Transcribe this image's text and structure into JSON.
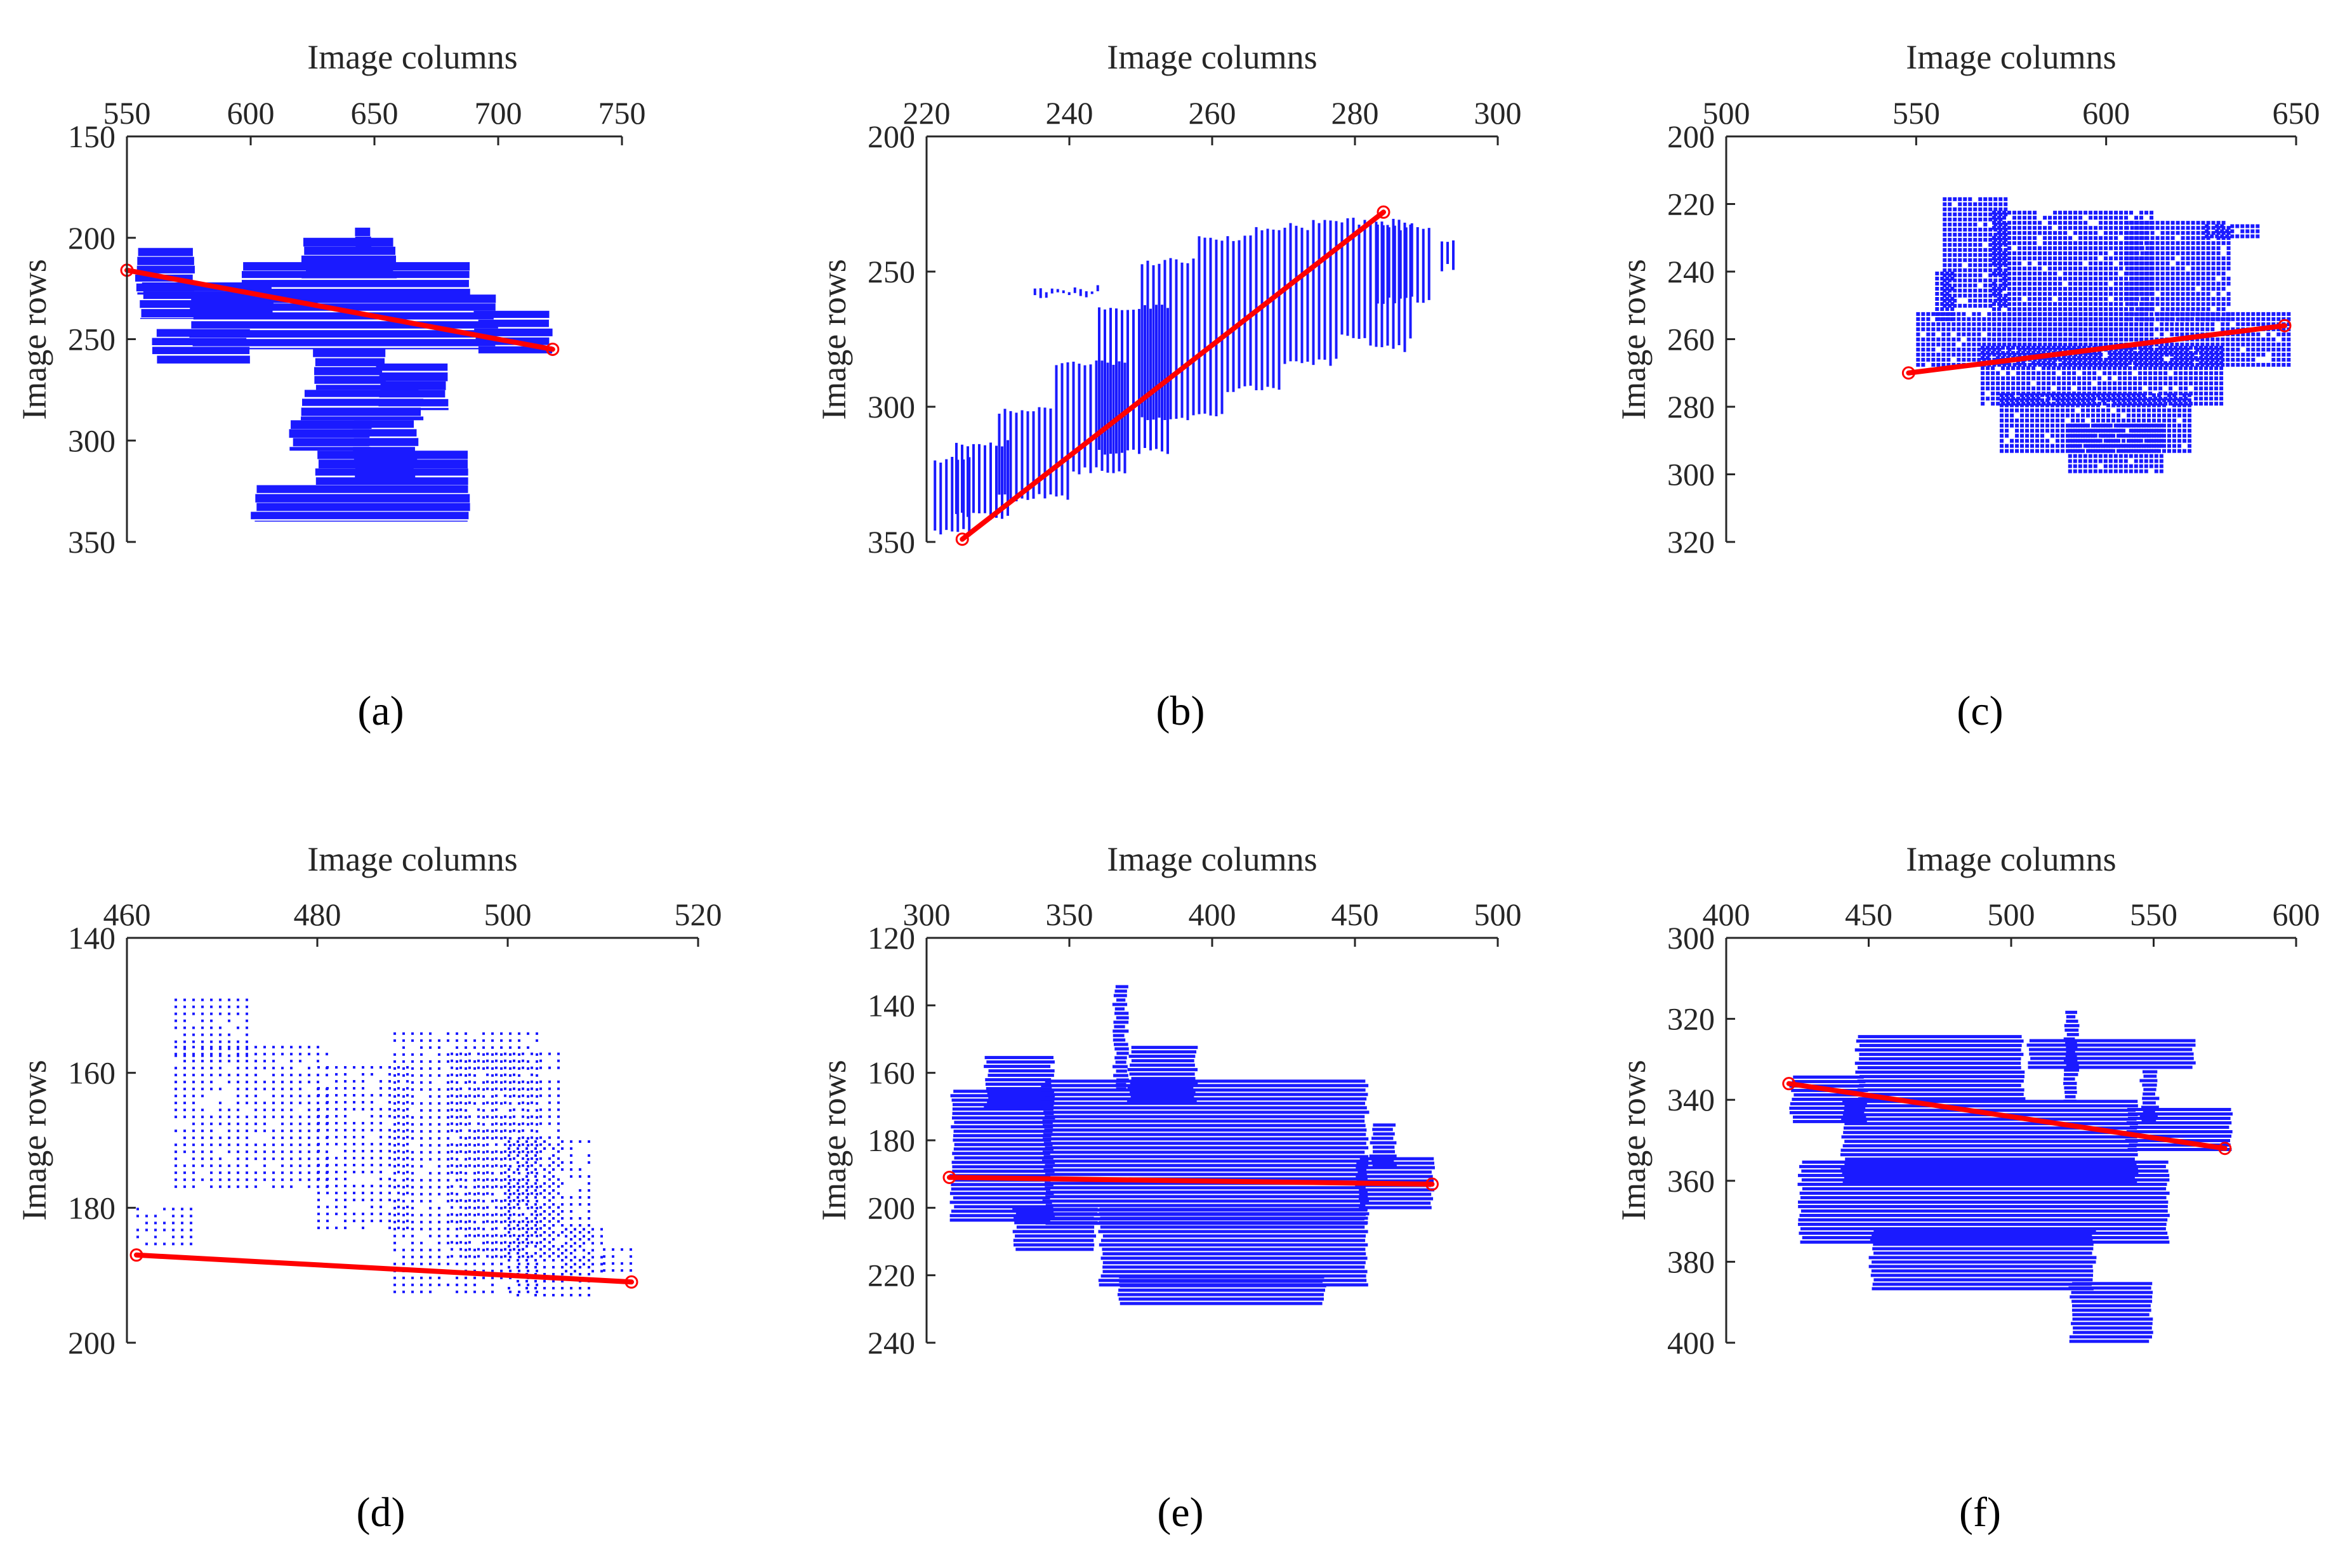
{
  "figure": {
    "colors": {
      "pixels": "#1a1aff",
      "fit_line": "#ff0000",
      "axis": "#262626"
    }
  },
  "chart_data": [
    {
      "type": "scatter",
      "panel": "(a)",
      "title": "",
      "xlabel": "Image columns",
      "ylabel": "Image rows",
      "x_axis_location": "top",
      "y_axis_direction": "reversed",
      "xlim": [
        550,
        750
      ],
      "ylim": [
        150,
        350
      ],
      "xticks": [
        550,
        600,
        650,
        700,
        750
      ],
      "yticks": [
        150,
        200,
        250,
        300,
        350
      ],
      "series": [
        {
          "name": "segmented pixels",
          "style": "blocks",
          "regions": [
            {
              "x": [
                552,
                578
              ],
              "y": [
                205,
                228
              ]
            },
            {
              "x": [
                555,
                610
              ],
              "y": [
                222,
                240
              ]
            },
            {
              "x": [
                575,
                700
              ],
              "y": [
                228,
                255
              ]
            },
            {
              "x": [
                595,
                690
              ],
              "y": [
                212,
                232
              ]
            },
            {
              "x": [
                620,
                660
              ],
              "y": [
                200,
                220
              ]
            },
            {
              "x": [
                640,
                650
              ],
              "y": [
                195,
                205
              ]
            },
            {
              "x": [
                690,
                722
              ],
              "y": [
                236,
                257
              ]
            },
            {
              "x": [
                560,
                600
              ],
              "y": [
                245,
                262
              ]
            },
            {
              "x": [
                625,
                655
              ],
              "y": [
                255,
                275
              ]
            },
            {
              "x": [
                620,
                670
              ],
              "y": [
                275,
                290
              ]
            },
            {
              "x": [
                650,
                680
              ],
              "y": [
                262,
                285
              ]
            },
            {
              "x": [
                640,
                668
              ],
              "y": [
                290,
                320
              ]
            },
            {
              "x": [
                625,
                690
              ],
              "y": [
                305,
                322
              ]
            },
            {
              "x": [
                600,
                690
              ],
              "y": [
                322,
                340
              ]
            },
            {
              "x": [
                615,
                650
              ],
              "y": [
                290,
                305
              ]
            }
          ]
        },
        {
          "name": "fitted line",
          "style": "line",
          "x": [
            550,
            722
          ],
          "y": [
            216,
            255
          ]
        }
      ]
    },
    {
      "type": "scatter",
      "panel": "(b)",
      "title": "",
      "xlabel": "Image columns",
      "ylabel": "Image rows",
      "x_axis_location": "top",
      "y_axis_direction": "reversed",
      "xlim": [
        220,
        300
      ],
      "ylim": [
        200,
        350
      ],
      "xticks": [
        220,
        240,
        260,
        280,
        300
      ],
      "yticks": [
        200,
        250,
        300,
        350
      ],
      "series": [
        {
          "name": "segmented pixels",
          "style": "vertical-stripes",
          "regions": [
            {
              "x": [
                221,
                226
              ],
              "y": [
                318,
                348
              ]
            },
            {
              "x": [
                224,
                232
              ],
              "y": [
                312,
                342
              ]
            },
            {
              "x": [
                230,
                240
              ],
              "y": [
                300,
                335
              ]
            },
            {
              "x": [
                238,
                248
              ],
              "y": [
                282,
                325
              ]
            },
            {
              "x": [
                244,
                254
              ],
              "y": [
                262,
                318
              ]
            },
            {
              "x": [
                250,
                262
              ],
              "y": [
                245,
                305
              ]
            },
            {
              "x": [
                258,
                270
              ],
              "y": [
                236,
                295
              ]
            },
            {
              "x": [
                266,
                278
              ],
              "y": [
                232,
                285
              ]
            },
            {
              "x": [
                274,
                288
              ],
              "y": [
                230,
                275
              ]
            },
            {
              "x": [
                283,
                291
              ],
              "y": [
                232,
                262
              ]
            },
            {
              "x": [
                292,
                294
              ],
              "y": [
                238,
                250
              ]
            },
            {
              "x": [
                235,
                244
              ],
              "y": [
                255,
                260
              ]
            },
            {
              "x": [
                282,
                287
              ],
              "y": [
                260,
                280
              ]
            }
          ]
        },
        {
          "name": "fitted line",
          "style": "line",
          "x": [
            225,
            284
          ],
          "y": [
            349,
            228
          ]
        }
      ]
    },
    {
      "type": "scatter",
      "panel": "(c)",
      "title": "",
      "xlabel": "Image columns",
      "ylabel": "Image rows",
      "x_axis_location": "top",
      "y_axis_direction": "reversed",
      "xlim": [
        500,
        650
      ],
      "ylim": [
        200,
        320
      ],
      "xticks": [
        500,
        550,
        600,
        650
      ],
      "yticks": [
        200,
        220,
        240,
        260,
        280,
        300,
        320
      ],
      "series": [
        {
          "name": "segmented pixels",
          "style": "grid-dots",
          "regions": [
            {
              "x": [
                557,
                574
              ],
              "y": [
                218,
                250
              ]
            },
            {
              "x": [
                570,
                612
              ],
              "y": [
                222,
                262
              ]
            },
            {
              "x": [
                605,
                632
              ],
              "y": [
                225,
                255
              ]
            },
            {
              "x": [
                550,
                648
              ],
              "y": [
                252,
                268
              ]
            },
            {
              "x": [
                567,
                630
              ],
              "y": [
                262,
                280
              ]
            },
            {
              "x": [
                572,
                622
              ],
              "y": [
                276,
                294
              ]
            },
            {
              "x": [
                590,
                615
              ],
              "y": [
                285,
                300
              ]
            },
            {
              "x": [
                626,
                640
              ],
              "y": [
                226,
                230
              ]
            },
            {
              "x": [
                555,
                560
              ],
              "y": [
                240,
                255
              ]
            }
          ]
        },
        {
          "name": "fitted line",
          "style": "line",
          "x": [
            548,
            647
          ],
          "y": [
            270,
            256
          ]
        }
      ]
    },
    {
      "type": "scatter",
      "panel": "(d)",
      "title": "",
      "xlabel": "Image columns",
      "ylabel": "Image rows",
      "x_axis_location": "top",
      "y_axis_direction": "reversed",
      "xlim": [
        460,
        520
      ],
      "ylim": [
        140,
        200
      ],
      "xticks": [
        460,
        480,
        500,
        520
      ],
      "yticks": [
        140,
        160,
        180,
        200
      ],
      "series": [
        {
          "name": "segmented pixels",
          "style": "sparse-dots",
          "regions": [
            {
              "x": [
                465,
                473
              ],
              "y": [
                149,
                158
              ]
            },
            {
              "x": [
                465,
                481
              ],
              "y": [
                156,
                177
              ]
            },
            {
              "x": [
                480,
                490
              ],
              "y": [
                159,
                183
              ]
            },
            {
              "x": [
                488,
                503
              ],
              "y": [
                154,
                193
              ]
            },
            {
              "x": [
                494,
                506
              ],
              "y": [
                157,
                188
              ]
            },
            {
              "x": [
                500,
                509
              ],
              "y": [
                170,
                193
              ]
            },
            {
              "x": [
                506,
                510
              ],
              "y": [
                183,
                190
              ]
            },
            {
              "x": [
                510,
                513
              ],
              "y": [
                186,
                190
              ]
            },
            {
              "x": [
                461,
                467
              ],
              "y": [
                180,
                186
              ]
            }
          ]
        },
        {
          "name": "fitted line",
          "style": "line",
          "x": [
            461,
            513
          ],
          "y": [
            187,
            191
          ]
        }
      ]
    },
    {
      "type": "scatter",
      "panel": "(e)",
      "title": "",
      "xlabel": "Image columns",
      "ylabel": "Image rows",
      "x_axis_location": "top",
      "y_axis_direction": "reversed",
      "xlim": [
        300,
        500
      ],
      "ylim": [
        120,
        240
      ],
      "xticks": [
        300,
        350,
        400,
        450,
        500
      ],
      "yticks": [
        120,
        140,
        160,
        180,
        200,
        220,
        240
      ],
      "series": [
        {
          "name": "segmented pixels",
          "style": "dense-rows",
          "regions": [
            {
              "x": [
                308,
                345
              ],
              "y": [
                165,
                204
              ]
            },
            {
              "x": [
                320,
                345
              ],
              "y": [
                155,
                170
              ]
            },
            {
              "x": [
                330,
                360
              ],
              "y": [
                200,
                212
              ]
            },
            {
              "x": [
                340,
                455
              ],
              "y": [
                162,
                205
              ]
            },
            {
              "x": [
                360,
                455
              ],
              "y": [
                200,
                223
              ]
            },
            {
              "x": [
                365,
                371
              ],
              "y": [
                134,
                165
              ]
            },
            {
              "x": [
                370,
                395
              ],
              "y": [
                152,
                168
              ]
            },
            {
              "x": [
                366,
                440
              ],
              "y": [
                220,
                229
              ]
            },
            {
              "x": [
                450,
                478
              ],
              "y": [
                185,
                200
              ]
            },
            {
              "x": [
                455,
                465
              ],
              "y": [
                175,
                188
              ]
            }
          ]
        },
        {
          "name": "fitted line",
          "style": "line",
          "x": [
            308,
            477
          ],
          "y": [
            191,
            193
          ]
        }
      ]
    },
    {
      "type": "scatter",
      "panel": "(f)",
      "title": "",
      "xlabel": "Image columns",
      "ylabel": "Image rows",
      "x_axis_location": "top",
      "y_axis_direction": "reversed",
      "xlim": [
        400,
        600
      ],
      "ylim": [
        300,
        400
      ],
      "xticks": [
        400,
        450,
        500,
        550,
        600
      ],
      "yticks": [
        300,
        320,
        340,
        360,
        380,
        400
      ],
      "series": [
        {
          "name": "segmented pixels",
          "style": "dense-rows",
          "regions": [
            {
              "x": [
                422,
                450
              ],
              "y": [
                334,
                346
              ]
            },
            {
              "x": [
                445,
                505
              ],
              "y": [
                324,
                340
              ]
            },
            {
              "x": [
                505,
                565
              ],
              "y": [
                325,
                332
              ]
            },
            {
              "x": [
                440,
                545
              ],
              "y": [
                340,
                360
              ]
            },
            {
              "x": [
                425,
                556
              ],
              "y": [
                355,
                375
              ]
            },
            {
              "x": [
                450,
                530
              ],
              "y": [
                372,
                387
              ]
            },
            {
              "x": [
                520,
                550
              ],
              "y": [
                385,
                400
              ]
            },
            {
              "x": [
                518,
                524
              ],
              "y": [
                318,
                340
              ]
            },
            {
              "x": [
                540,
                578
              ],
              "y": [
                342,
                352
              ]
            },
            {
              "x": [
                545,
                552
              ],
              "y": [
                325,
                345
              ]
            }
          ]
        },
        {
          "name": "fitted line",
          "style": "line",
          "x": [
            422,
            575
          ],
          "y": [
            336,
            352
          ]
        }
      ]
    }
  ]
}
